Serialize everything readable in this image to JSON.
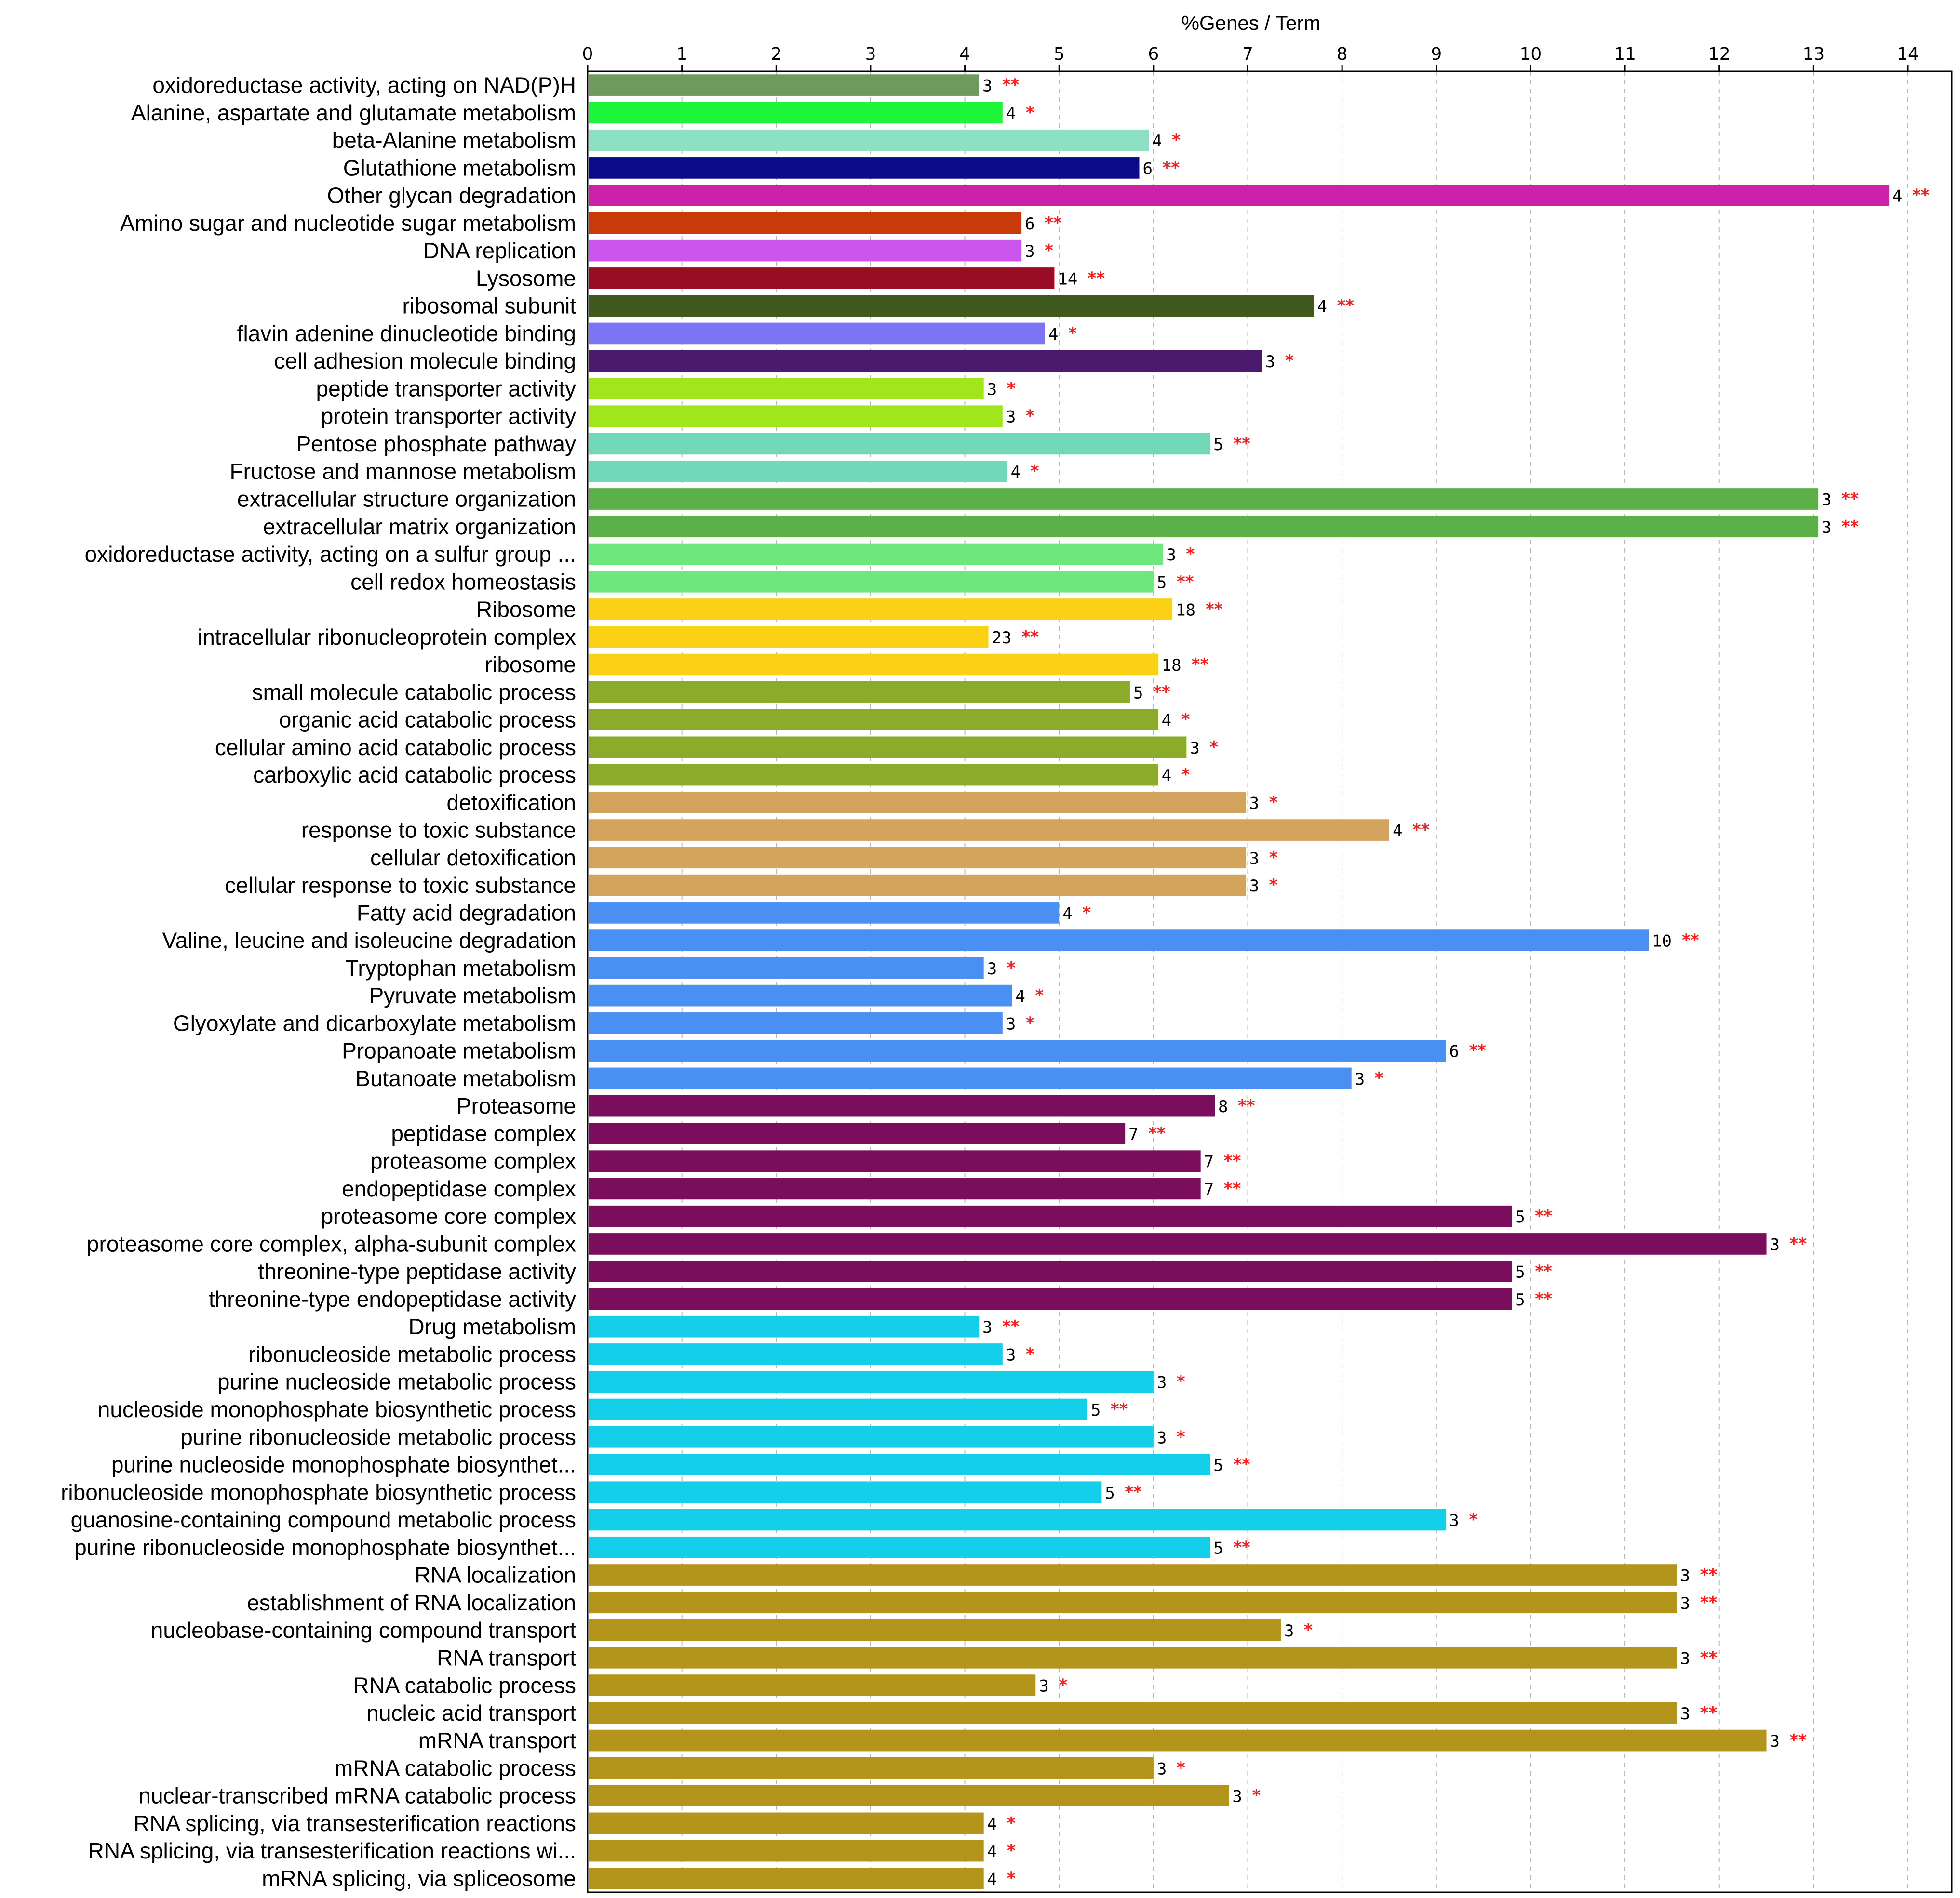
{
  "chart_data": {
    "type": "bar",
    "orientation": "horizontal",
    "title": "%Genes / Term",
    "xlabel": "%Genes / Term",
    "ylabel": "",
    "xlim": [
      0,
      14
    ],
    "x_ticks": [
      "0",
      "1",
      "2",
      "3",
      "4",
      "5",
      "6",
      "7",
      "8",
      "9",
      "10",
      "11",
      "12",
      "13",
      "14"
    ],
    "grid": "vertical dashed",
    "bars": [
      {
        "label": "oxidoreductase activity, acting on NAD(P)H",
        "value": 4.15,
        "count": "3",
        "sig": "**",
        "color": "#6e9a5e"
      },
      {
        "label": "Alanine, aspartate and glutamate metabolism",
        "value": 4.4,
        "count": "4",
        "sig": "*",
        "color": "#1ef53a"
      },
      {
        "label": "beta-Alanine metabolism",
        "value": 5.95,
        "count": "4",
        "sig": "*",
        "color": "#8de0c4"
      },
      {
        "label": "Glutathione metabolism",
        "value": 5.85,
        "count": "6",
        "sig": "**",
        "color": "#0b0b8a"
      },
      {
        "label": "Other glycan degradation",
        "value": 13.8,
        "count": "4",
        "sig": "**",
        "color": "#cc22aa"
      },
      {
        "label": "Amino sugar and nucleotide sugar metabolism",
        "value": 4.6,
        "count": "6",
        "sig": "**",
        "color": "#c93a0a"
      },
      {
        "label": "DNA replication",
        "value": 4.6,
        "count": "3",
        "sig": "*",
        "color": "#cc55ee"
      },
      {
        "label": "Lysosome",
        "value": 4.95,
        "count": "14",
        "sig": "**",
        "color": "#990d24"
      },
      {
        "label": "ribosomal subunit",
        "value": 7.7,
        "count": "4",
        "sig": "**",
        "color": "#3f5a1c"
      },
      {
        "label": "flavin adenine dinucleotide binding",
        "value": 4.85,
        "count": "4",
        "sig": "*",
        "color": "#7b75f5"
      },
      {
        "label": "cell adhesion molecule binding",
        "value": 7.15,
        "count": "3",
        "sig": "*",
        "color": "#4b1a6e"
      },
      {
        "label": "peptide transporter activity",
        "value": 4.2,
        "count": "3",
        "sig": "*",
        "color": "#a0e61a"
      },
      {
        "label": "protein transporter activity",
        "value": 4.4,
        "count": "3",
        "sig": "*",
        "color": "#a0e61a"
      },
      {
        "label": "Pentose phosphate pathway",
        "value": 6.6,
        "count": "5",
        "sig": "**",
        "color": "#72d9b8"
      },
      {
        "label": "Fructose and mannose metabolism",
        "value": 4.45,
        "count": "4",
        "sig": "*",
        "color": "#72d9b8"
      },
      {
        "label": "extracellular structure organization",
        "value": 13.05,
        "count": "3",
        "sig": "**",
        "color": "#5cb048"
      },
      {
        "label": "extracellular matrix organization",
        "value": 13.05,
        "count": "3",
        "sig": "**",
        "color": "#5cb048"
      },
      {
        "label": "oxidoreductase activity, acting on a sulfur group ...",
        "value": 6.1,
        "count": "3",
        "sig": "*",
        "color": "#6ee87c"
      },
      {
        "label": "cell redox homeostasis",
        "value": 6.0,
        "count": "5",
        "sig": "**",
        "color": "#6ee87c"
      },
      {
        "label": "Ribosome",
        "value": 6.2,
        "count": "18",
        "sig": "**",
        "color": "#fbd015"
      },
      {
        "label": "intracellular ribonucleoprotein complex",
        "value": 4.25,
        "count": "23",
        "sig": "**",
        "color": "#fbd015"
      },
      {
        "label": "ribosome",
        "value": 6.05,
        "count": "18",
        "sig": "**",
        "color": "#fbd015"
      },
      {
        "label": "small molecule catabolic process",
        "value": 5.75,
        "count": "5",
        "sig": "**",
        "color": "#8aac2a"
      },
      {
        "label": "organic acid catabolic process",
        "value": 6.05,
        "count": "4",
        "sig": "*",
        "color": "#8aac2a"
      },
      {
        "label": "cellular amino acid catabolic process",
        "value": 6.35,
        "count": "3",
        "sig": "*",
        "color": "#8aac2a"
      },
      {
        "label": "carboxylic acid catabolic process",
        "value": 6.05,
        "count": "4",
        "sig": "*",
        "color": "#8aac2a"
      },
      {
        "label": "detoxification",
        "value": 6.98,
        "count": "3",
        "sig": "*",
        "color": "#d4a35e"
      },
      {
        "label": "response to toxic substance",
        "value": 8.5,
        "count": "4",
        "sig": "**",
        "color": "#d4a35e"
      },
      {
        "label": "cellular detoxification",
        "value": 6.98,
        "count": "3",
        "sig": "*",
        "color": "#d4a35e"
      },
      {
        "label": "cellular response to toxic substance",
        "value": 6.98,
        "count": "3",
        "sig": "*",
        "color": "#d4a35e"
      },
      {
        "label": "Fatty acid degradation",
        "value": 5.0,
        "count": "4",
        "sig": "*",
        "color": "#4a8ff2"
      },
      {
        "label": "Valine, leucine and isoleucine degradation",
        "value": 11.25,
        "count": "10",
        "sig": "**",
        "color": "#4a8ff2"
      },
      {
        "label": "Tryptophan metabolism",
        "value": 4.2,
        "count": "3",
        "sig": "*",
        "color": "#4a8ff2"
      },
      {
        "label": "Pyruvate metabolism",
        "value": 4.5,
        "count": "4",
        "sig": "*",
        "color": "#4a8ff2"
      },
      {
        "label": "Glyoxylate and dicarboxylate metabolism",
        "value": 4.4,
        "count": "3",
        "sig": "*",
        "color": "#4a8ff2"
      },
      {
        "label": "Propanoate metabolism",
        "value": 9.1,
        "count": "6",
        "sig": "**",
        "color": "#4a8ff2"
      },
      {
        "label": "Butanoate metabolism",
        "value": 8.1,
        "count": "3",
        "sig": "*",
        "color": "#4a8ff2"
      },
      {
        "label": "Proteasome",
        "value": 6.65,
        "count": "8",
        "sig": "**",
        "color": "#7a0d5c"
      },
      {
        "label": "peptidase complex",
        "value": 5.7,
        "count": "7",
        "sig": "**",
        "color": "#7a0d5c"
      },
      {
        "label": "proteasome complex",
        "value": 6.5,
        "count": "7",
        "sig": "**",
        "color": "#7a0d5c"
      },
      {
        "label": "endopeptidase complex",
        "value": 6.5,
        "count": "7",
        "sig": "**",
        "color": "#7a0d5c"
      },
      {
        "label": "proteasome core complex",
        "value": 9.8,
        "count": "5",
        "sig": "**",
        "color": "#7a0d5c"
      },
      {
        "label": "proteasome core complex, alpha-subunit complex",
        "value": 12.5,
        "count": "3",
        "sig": "**",
        "color": "#7a0d5c"
      },
      {
        "label": "threonine-type peptidase activity",
        "value": 9.8,
        "count": "5",
        "sig": "**",
        "color": "#7a0d5c"
      },
      {
        "label": "threonine-type endopeptidase activity",
        "value": 9.8,
        "count": "5",
        "sig": "**",
        "color": "#7a0d5c"
      },
      {
        "label": "Drug metabolism",
        "value": 4.15,
        "count": "3",
        "sig": "**",
        "color": "#14cfe9"
      },
      {
        "label": "ribonucleoside metabolic process",
        "value": 4.4,
        "count": "3",
        "sig": "*",
        "color": "#14cfe9"
      },
      {
        "label": "purine nucleoside metabolic process",
        "value": 6.0,
        "count": "3",
        "sig": "*",
        "color": "#14cfe9"
      },
      {
        "label": "nucleoside monophosphate biosynthetic process",
        "value": 5.3,
        "count": "5",
        "sig": "**",
        "color": "#14cfe9"
      },
      {
        "label": "purine ribonucleoside metabolic process",
        "value": 6.0,
        "count": "3",
        "sig": "*",
        "color": "#14cfe9"
      },
      {
        "label": "purine nucleoside monophosphate biosynthet...",
        "value": 6.6,
        "count": "5",
        "sig": "**",
        "color": "#14cfe9"
      },
      {
        "label": "ribonucleoside monophosphate biosynthetic process",
        "value": 5.45,
        "count": "5",
        "sig": "**",
        "color": "#14cfe9"
      },
      {
        "label": "guanosine-containing compound metabolic process",
        "value": 9.1,
        "count": "3",
        "sig": "*",
        "color": "#14cfe9"
      },
      {
        "label": "purine ribonucleoside monophosphate biosynthet...",
        "value": 6.6,
        "count": "5",
        "sig": "**",
        "color": "#14cfe9"
      },
      {
        "label": "RNA localization",
        "value": 11.55,
        "count": "3",
        "sig": "**",
        "color": "#b4951c"
      },
      {
        "label": "establishment of RNA localization",
        "value": 11.55,
        "count": "3",
        "sig": "**",
        "color": "#b4951c"
      },
      {
        "label": "nucleobase-containing compound transport",
        "value": 7.35,
        "count": "3",
        "sig": "*",
        "color": "#b4951c"
      },
      {
        "label": "RNA transport",
        "value": 11.55,
        "count": "3",
        "sig": "**",
        "color": "#b4951c"
      },
      {
        "label": "RNA catabolic process",
        "value": 4.75,
        "count": "3",
        "sig": "*",
        "color": "#b4951c"
      },
      {
        "label": "nucleic acid transport",
        "value": 11.55,
        "count": "3",
        "sig": "**",
        "color": "#b4951c"
      },
      {
        "label": "mRNA transport",
        "value": 12.5,
        "count": "3",
        "sig": "**",
        "color": "#b4951c"
      },
      {
        "label": "mRNA catabolic process",
        "value": 6.0,
        "count": "3",
        "sig": "*",
        "color": "#b4951c"
      },
      {
        "label": "nuclear-transcribed mRNA catabolic process",
        "value": 6.8,
        "count": "3",
        "sig": "*",
        "color": "#b4951c"
      },
      {
        "label": "RNA splicing, via transesterification reactions",
        "value": 4.2,
        "count": "4",
        "sig": "*",
        "color": "#b4951c"
      },
      {
        "label": "RNA splicing, via transesterification reactions wi...",
        "value": 4.2,
        "count": "4",
        "sig": "*",
        "color": "#b4951c"
      },
      {
        "label": "mRNA splicing, via spliceosome",
        "value": 4.2,
        "count": "4",
        "sig": "*",
        "color": "#b4951c"
      }
    ]
  }
}
